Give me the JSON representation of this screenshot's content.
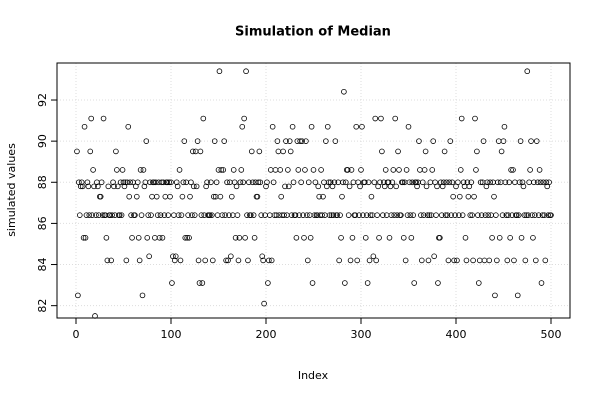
{
  "chart_data": {
    "type": "scatter",
    "title": "Simulation of Median",
    "x_label": "Index",
    "y_label": "simulated values",
    "color": "#000000",
    "grid": true,
    "xlim": [
      -20,
      520
    ],
    "xticks": [
      0,
      100,
      200,
      300,
      400,
      500
    ],
    "ylim": [
      81.4,
      93.8
    ],
    "yticks": [
      82,
      84,
      86,
      88,
      90,
      92
    ],
    "values": [
      89.5,
      82.5,
      88,
      86.4,
      87.8,
      88,
      87.8,
      85.3,
      90.7,
      85.3,
      86.4,
      88,
      87.8,
      86.4,
      89.5,
      91.1,
      86.4,
      88.6,
      87.8,
      81.5,
      86.4,
      88,
      87.8,
      86.4,
      87.3,
      87.3,
      88,
      86.4,
      91.1,
      86.4,
      86.4,
      85.3,
      84.2,
      87.8,
      86.4,
      86.4,
      84.2,
      86.4,
      88,
      87.8,
      86.4,
      89.5,
      88.6,
      87.8,
      86.4,
      86.4,
      88,
      86.4,
      88.6,
      88,
      87.8,
      88,
      84.2,
      88,
      90.7,
      87.3,
      88,
      86.4,
      85.3,
      88,
      86.4,
      86.4,
      87.8,
      87.3,
      88,
      85.3,
      84.2,
      88.6,
      86.4,
      82.5,
      88.6,
      87.8,
      88,
      90,
      85.3,
      86.4,
      84.4,
      88,
      86.4,
      87.3,
      88,
      88,
      85.3,
      88,
      87.3,
      86.4,
      88,
      85.3,
      86.4,
      88,
      85.3,
      88,
      86.4,
      87.3,
      88,
      88,
      86.4,
      88,
      87.3,
      88,
      83.1,
      84.4,
      86.4,
      84.2,
      84.4,
      88,
      87.8,
      86.4,
      88.6,
      84.2,
      86.4,
      87.3,
      88,
      90,
      85.3,
      88,
      85.3,
      86.4,
      85.3,
      87.3,
      88,
      86.4,
      89.5,
      87.8,
      86.4,
      89.5,
      87.8,
      90,
      84.2,
      83.1,
      89.5,
      86.4,
      83.1,
      91.1,
      86.4,
      84.2,
      87.8,
      88,
      86.4,
      86.4,
      86.4,
      88,
      86.4,
      84.2,
      87.3,
      90,
      87.3,
      88,
      86.4,
      88.6,
      93.4,
      87.3,
      88.6,
      86.4,
      88.6,
      90,
      86.4,
      84.2,
      88,
      84.2,
      86.4,
      88,
      84.4,
      87.3,
      86.4,
      88.6,
      88,
      85.3,
      87.8,
      86.4,
      84.2,
      85.3,
      88,
      88.6,
      90.7,
      88,
      91.1,
      85.3,
      93.4,
      86.4,
      84.2,
      88,
      86.4,
      86.4,
      89.5,
      88,
      86.4,
      85.3,
      88,
      87.3,
      87.3,
      88,
      89.5,
      88,
      86.4,
      84.4,
      84.2,
      82.1,
      86.4,
      87.8,
      88,
      83.1,
      84.2,
      86.4,
      88.6,
      84.2,
      90.7,
      88,
      86.4,
      88.6,
      86.4,
      90,
      89.5,
      86.4,
      88.6,
      87.3,
      86.4,
      89.5,
      86.4,
      87.8,
      90,
      86.4,
      88.6,
      87.8,
      90,
      89.5,
      86.4,
      90.7,
      88,
      86.4,
      86.4,
      85.3,
      90,
      88.6,
      86.4,
      90,
      88,
      90,
      86.4,
      85.3,
      88.6,
      90,
      86.4,
      84.2,
      88,
      86.4,
      85.3,
      90.7,
      83.1,
      88.6,
      86.4,
      88,
      86.4,
      86.4,
      87.8,
      87.3,
      86.4,
      88.6,
      86.4,
      87.3,
      88,
      86.4,
      90,
      87.8,
      90.7,
      88,
      86.4,
      88,
      86.4,
      87.8,
      86.4,
      88,
      90,
      86.4,
      86.4,
      88,
      84.2,
      86.4,
      85.3,
      87.3,
      88,
      92.4,
      83.1,
      88,
      88.6,
      88.6,
      86.4,
      87.8,
      84.2,
      88.6,
      85.3,
      88,
      86.4,
      86.4,
      90.7,
      84.2,
      88,
      86.4,
      87.8,
      88.6,
      90.7,
      86.4,
      88,
      88,
      85.3,
      86.4,
      83.1,
      88,
      84.2,
      86.4,
      87.3,
      86.4,
      84.4,
      88,
      91.1,
      84.2,
      86.4,
      87.8,
      85.3,
      88,
      91.1,
      89.5,
      86.4,
      88,
      87.8,
      88.6,
      86.4,
      88,
      88,
      85.3,
      87.8,
      86.4,
      88,
      88.6,
      86.4,
      91.1,
      87.8,
      86.4,
      89.5,
      88.6,
      86.4,
      86.4,
      88,
      88,
      85.3,
      88,
      84.2,
      88.6,
      86.4,
      90.7,
      88,
      86.4,
      85.3,
      88,
      86.4,
      83.1,
      88,
      88,
      87.8,
      88,
      90,
      88.6,
      86.4,
      84.2,
      88,
      86.4,
      88.6,
      89.5,
      87.8,
      86.4,
      84.2,
      86.4,
      88,
      86.4,
      88.6,
      90,
      84.4,
      88,
      86.4,
      87.8,
      83.1,
      85.3,
      85.3,
      88,
      86.4,
      87.8,
      88,
      89.5,
      86.4,
      88,
      86.4,
      84.2,
      88,
      90,
      86.4,
      88,
      87.3,
      84.2,
      86.4,
      87.8,
      84.2,
      88,
      86.4,
      87.3,
      88.6,
      91.1,
      86.4,
      88,
      87.8,
      85.3,
      84.2,
      88,
      87.3,
      87.8,
      86.4,
      88,
      86.4,
      84.2,
      87.3,
      91.1,
      88.6,
      89.5,
      86.4,
      83.1,
      84.2,
      88,
      86.4,
      88,
      90,
      84.2,
      86.4,
      87.8,
      88,
      86.4,
      84.2,
      88,
      86.4,
      85.3,
      88,
      87.3,
      82.5,
      86.4,
      84.2,
      88,
      90,
      85.3,
      88,
      89.5,
      86.4,
      90,
      90.7,
      88,
      86.4,
      84.2,
      86.4,
      88,
      85.3,
      88.6,
      86.4,
      88.6,
      84.2,
      88,
      86.4,
      86.4,
      82.5,
      86.4,
      88,
      90,
      85.3,
      88,
      87.8,
      86.4,
      84.2,
      86.4,
      93.4,
      86.4,
      88,
      88.6,
      90,
      86.4,
      85.3,
      88,
      86.4,
      84.2,
      90,
      88,
      86.4,
      88.6,
      88,
      83.1,
      86.4,
      88,
      86.4,
      84.2,
      88,
      87.8,
      86.4,
      88,
      86.4,
      86.4
    ]
  }
}
